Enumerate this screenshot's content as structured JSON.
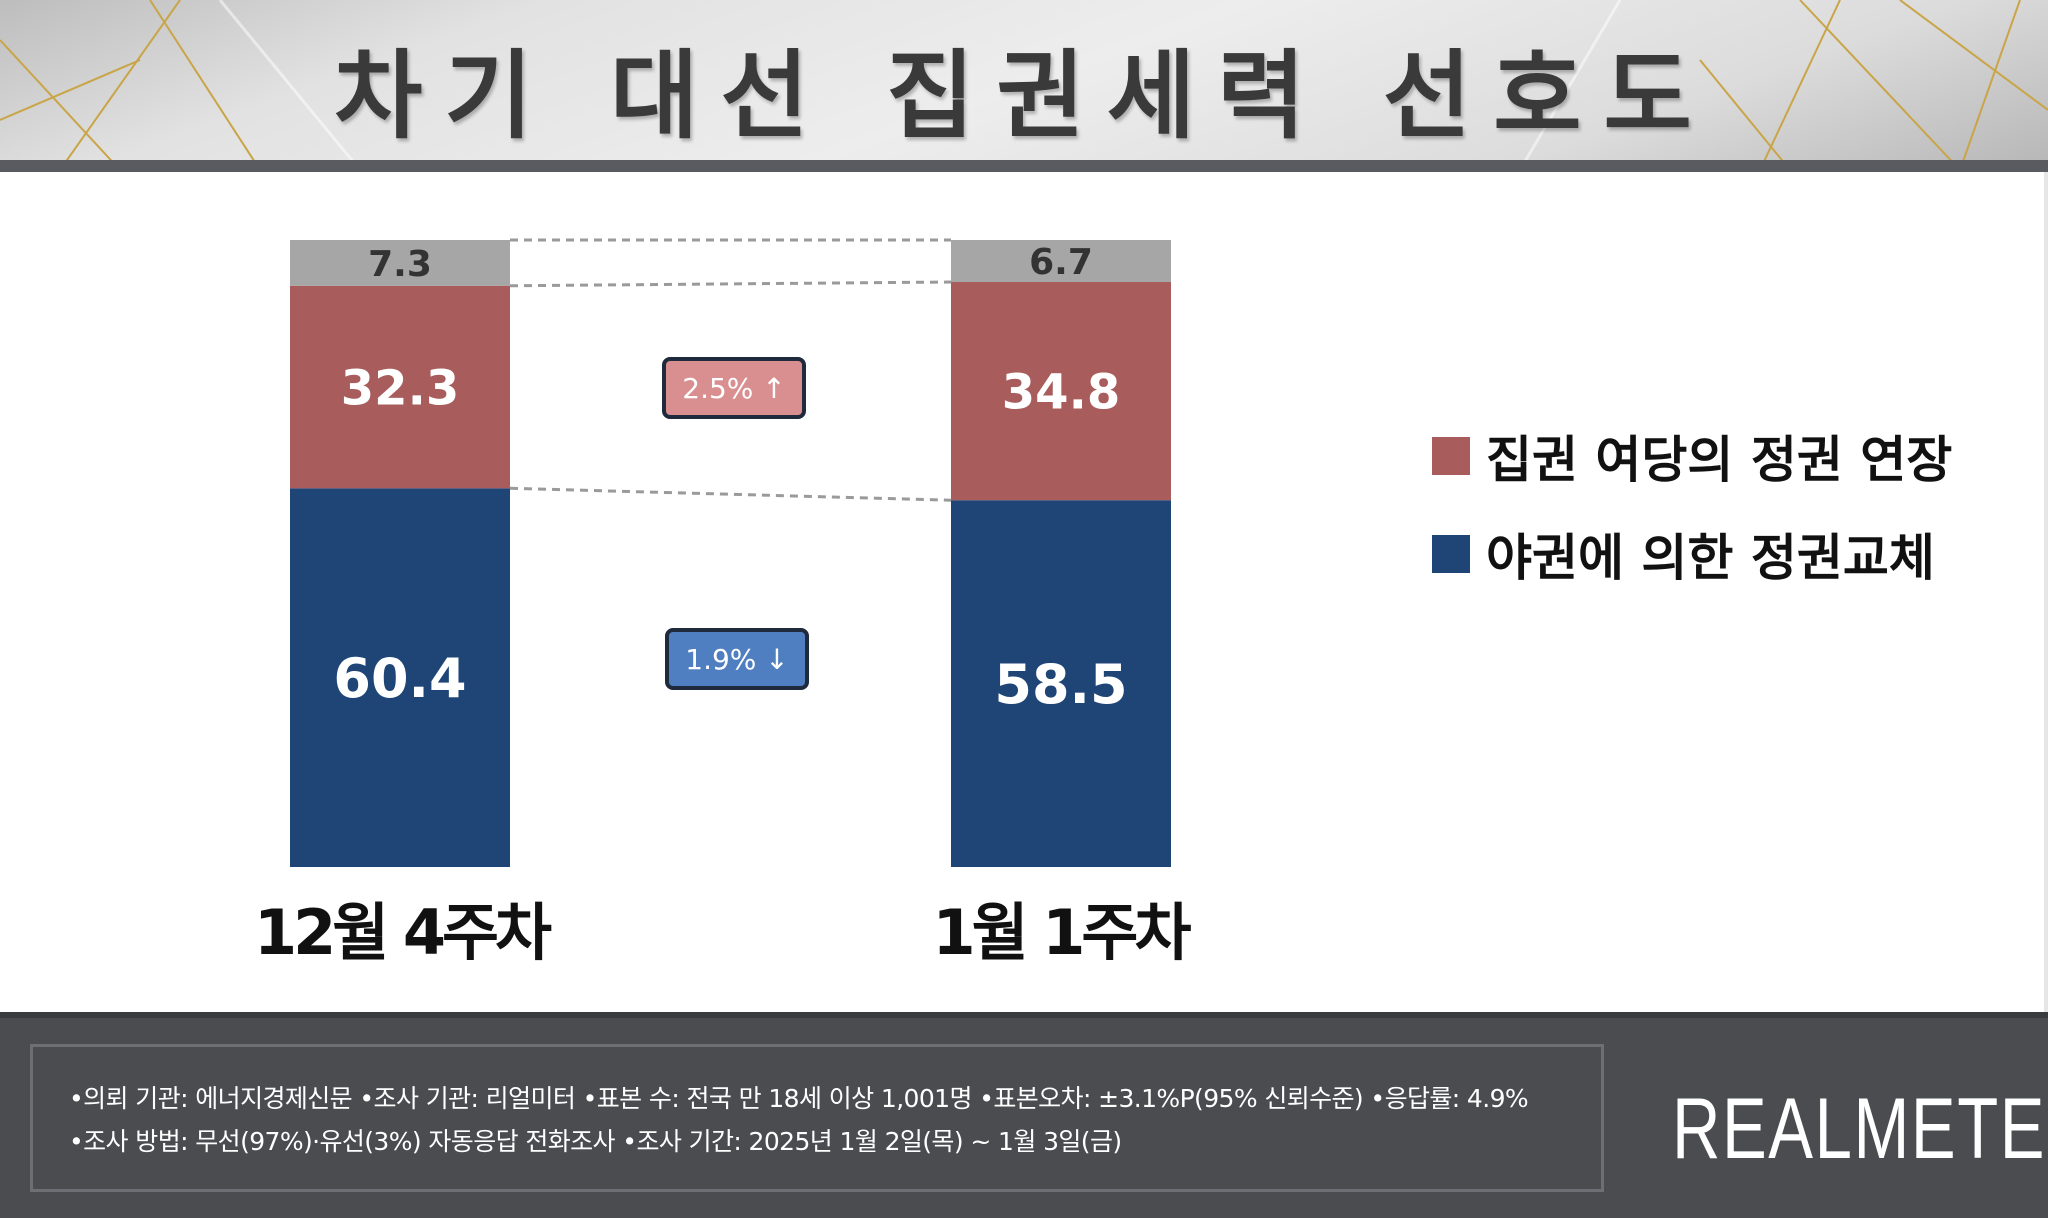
{
  "header": {
    "title": "차기 대선 집권세력 선호도"
  },
  "chart_data": {
    "type": "bar",
    "stacked": true,
    "title": "차기 대선 집권세력 선호도",
    "categories": [
      "12월 4주차",
      "1월 1주차"
    ],
    "series": [
      {
        "name": "야권에 의한 정권교체",
        "values": [
          60.4,
          58.5
        ],
        "color": "#1f4577"
      },
      {
        "name": "집권 여당의 정권 연장",
        "values": [
          32.3,
          34.8
        ],
        "color": "#a85c5b"
      },
      {
        "name": "",
        "values": [
          7.3,
          6.7
        ],
        "color": "#a6a6a6"
      }
    ],
    "changes": [
      {
        "label": "2.5% ↑",
        "color": "#d98f90"
      },
      {
        "label": "1.9% ↓",
        "color": "#4f7fc0"
      }
    ],
    "legend": {
      "placement": "right",
      "items": [
        {
          "label": "집권 여당의 정권 연장",
          "color": "#a85c5b"
        },
        {
          "label": "야권에 의한 정권교체",
          "color": "#1f4577"
        }
      ]
    },
    "connector_lines": "dashed",
    "grid": false
  },
  "footer": {
    "line1": "•의뢰 기관: 에너지경제신문 •조사 기관: 리얼미터 •표본 수: 전국 만 18세 이상 1,001명 •표본오차: ±3.1%P(95% 신뢰수준) •응답률: 4.9%",
    "line2": "•조사 방법: 무선(97%)·유선(3%) 자동응답 전화조사 •조사 기간: 2025년 1월 2일(목) ~ 1월 3일(금)",
    "brand": "REALMETER"
  }
}
